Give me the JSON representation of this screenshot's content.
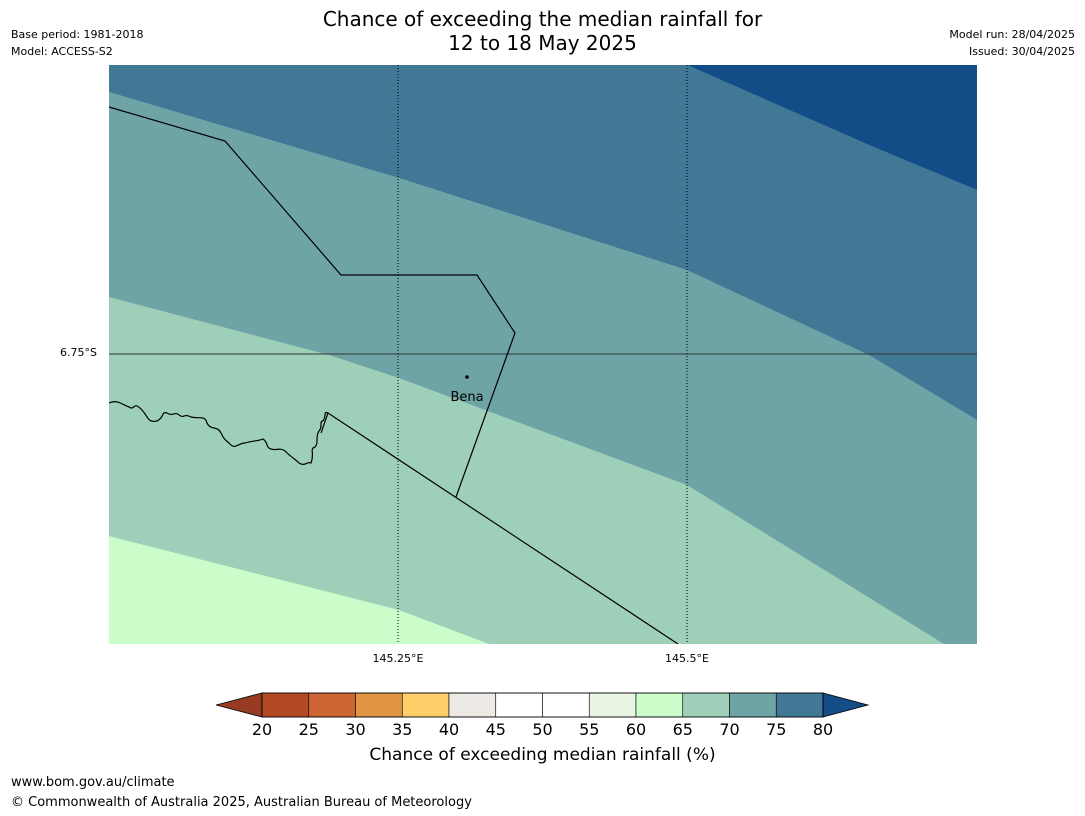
{
  "title_line1": "Chance of exceeding the median rainfall for",
  "title_line2": "12 to 18 May 2025",
  "base_period": "Base period: 1981-2018",
  "model": "Model: ACCESS-S2",
  "model_run": "Model run: 28/04/2025",
  "issued": "Issued: 30/04/2025",
  "map": {
    "place_label": "Bena",
    "lat_label": "6.75°S",
    "lon_labels": [
      "145.25°E",
      "145.5°E"
    ]
  },
  "colorbar": {
    "ticks": [
      "20",
      "25",
      "30",
      "35",
      "40",
      "45",
      "50",
      "55",
      "60",
      "65",
      "70",
      "75",
      "80"
    ],
    "bin_colors": [
      "#b44a25",
      "#cc6533",
      "#e29545",
      "#fece6a",
      "#ede9e5",
      "#ffffff",
      "#ffffff",
      "#e8f5e5",
      "#cafdc9",
      "#9ecfb8",
      "#6fa4a7",
      "#407896"
    ],
    "under_color": "#973b22",
    "over_color": "#134d88",
    "label": "Chance of exceeding median rainfall (%)"
  },
  "footer_url": "www.bom.gov.au/climate",
  "footer_copyright": "© Commonwealth of Australia 2025, Australian Bureau of Meteorology"
}
